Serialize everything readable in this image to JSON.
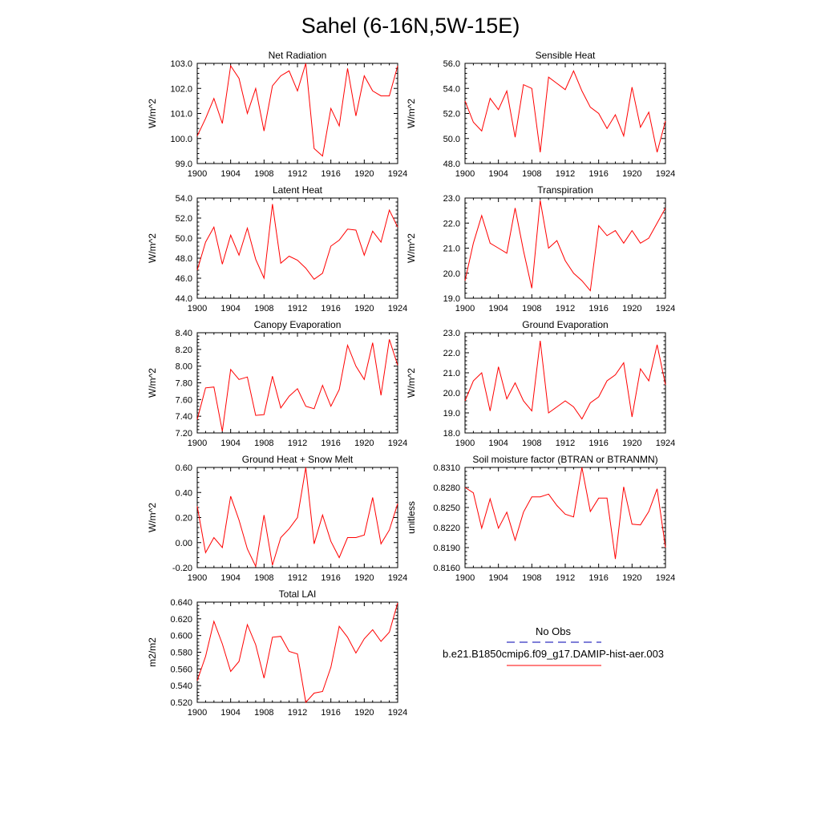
{
  "title": "Sahel (6-16N,5W-15E)",
  "legend": {
    "obs_label": "No Obs",
    "obs_color": "#3030c0",
    "model_label": "b.e21.B1850cmip6.f09_g17.DAMIP-hist-aer.003",
    "model_color": "#ff0000"
  },
  "series_color": "#ff0000",
  "chart_data": [
    {
      "type": "line",
      "title": "Net Radiation",
      "ylabel": "W/m^2",
      "xlim": [
        1900,
        1924
      ],
      "ylim": [
        99.0,
        103.0
      ],
      "xticks": [
        "1900",
        "1904",
        "1908",
        "1912",
        "1916",
        "1920",
        "1924"
      ],
      "yticks": [
        "99.0",
        "100.0",
        "101.0",
        "102.0",
        "103.0"
      ],
      "x": [
        1900,
        1901,
        1902,
        1903,
        1904,
        1905,
        1906,
        1907,
        1908,
        1909,
        1910,
        1911,
        1912,
        1913,
        1914,
        1915,
        1916,
        1917,
        1918,
        1919,
        1920,
        1921,
        1922,
        1923,
        1924
      ],
      "y": [
        100.1,
        100.8,
        101.6,
        100.6,
        102.9,
        102.4,
        101.0,
        102.0,
        100.3,
        102.1,
        102.5,
        102.7,
        101.9,
        103.0,
        99.6,
        99.3,
        101.2,
        100.5,
        102.8,
        100.9,
        102.5,
        101.9,
        101.7,
        101.7,
        102.9
      ]
    },
    {
      "type": "line",
      "title": "Sensible Heat",
      "ylabel": "W/m^2",
      "xlim": [
        1900,
        1924
      ],
      "ylim": [
        48.0,
        56.0
      ],
      "xticks": [
        "1900",
        "1904",
        "1908",
        "1912",
        "1916",
        "1920",
        "1924"
      ],
      "yticks": [
        "48.0",
        "50.0",
        "52.0",
        "54.0",
        "56.0"
      ],
      "x": [
        1900,
        1901,
        1902,
        1903,
        1904,
        1905,
        1906,
        1907,
        1908,
        1909,
        1910,
        1911,
        1912,
        1913,
        1914,
        1915,
        1916,
        1917,
        1918,
        1919,
        1920,
        1921,
        1922,
        1923,
        1924
      ],
      "y": [
        53.0,
        51.3,
        50.6,
        53.2,
        52.3,
        53.8,
        50.1,
        54.3,
        54.0,
        48.9,
        54.9,
        54.4,
        53.9,
        55.4,
        53.8,
        52.5,
        52.0,
        50.8,
        51.9,
        50.2,
        54.1,
        50.9,
        52.1,
        48.9,
        51.4
      ]
    },
    {
      "type": "line",
      "title": "Latent Heat",
      "ylabel": "W/m^2",
      "xlim": [
        1900,
        1924
      ],
      "ylim": [
        44.0,
        54.0
      ],
      "xticks": [
        "1900",
        "1904",
        "1908",
        "1912",
        "1916",
        "1920",
        "1924"
      ],
      "yticks": [
        "44.0",
        "46.0",
        "48.0",
        "50.0",
        "52.0",
        "54.0"
      ],
      "x": [
        1900,
        1901,
        1902,
        1903,
        1904,
        1905,
        1906,
        1907,
        1908,
        1909,
        1910,
        1911,
        1912,
        1913,
        1914,
        1915,
        1916,
        1917,
        1918,
        1919,
        1920,
        1921,
        1922,
        1923,
        1924
      ],
      "y": [
        46.8,
        49.6,
        51.1,
        47.4,
        50.3,
        48.3,
        51.0,
        47.9,
        46.0,
        53.4,
        47.5,
        48.2,
        47.8,
        47.0,
        45.9,
        46.5,
        49.2,
        49.8,
        50.9,
        50.8,
        48.3,
        50.7,
        49.6,
        52.8,
        51.1
      ]
    },
    {
      "type": "line",
      "title": "Transpiration",
      "ylabel": "W/m^2",
      "xlim": [
        1900,
        1924
      ],
      "ylim": [
        19.0,
        23.0
      ],
      "xticks": [
        "1900",
        "1904",
        "1908",
        "1912",
        "1916",
        "1920",
        "1924"
      ],
      "yticks": [
        "19.0",
        "20.0",
        "21.0",
        "22.0",
        "23.0"
      ],
      "x": [
        1900,
        1901,
        1902,
        1903,
        1904,
        1905,
        1906,
        1907,
        1908,
        1909,
        1910,
        1911,
        1912,
        1913,
        1914,
        1915,
        1916,
        1917,
        1918,
        1919,
        1920,
        1921,
        1922,
        1923,
        1924
      ],
      "y": [
        19.7,
        21.2,
        22.3,
        21.2,
        21.0,
        20.8,
        22.6,
        20.9,
        19.4,
        22.9,
        21.0,
        21.3,
        20.5,
        20.0,
        19.7,
        19.3,
        21.9,
        21.5,
        21.7,
        21.2,
        21.7,
        21.2,
        21.4,
        22.0,
        22.6
      ]
    },
    {
      "type": "line",
      "title": "Canopy Evaporation",
      "ylabel": "W/m^2",
      "xlim": [
        1900,
        1924
      ],
      "ylim": [
        7.2,
        8.4
      ],
      "xticks": [
        "1900",
        "1904",
        "1908",
        "1912",
        "1916",
        "1920",
        "1924"
      ],
      "yticks": [
        "7.20",
        "7.40",
        "7.60",
        "7.80",
        "8.00",
        "8.20",
        "8.40"
      ],
      "x": [
        1900,
        1901,
        1902,
        1903,
        1904,
        1905,
        1906,
        1907,
        1908,
        1909,
        1910,
        1911,
        1912,
        1913,
        1914,
        1915,
        1916,
        1917,
        1918,
        1919,
        1920,
        1921,
        1922,
        1923,
        1924
      ],
      "y": [
        7.36,
        7.74,
        7.75,
        7.22,
        7.96,
        7.84,
        7.87,
        7.41,
        7.42,
        7.88,
        7.5,
        7.64,
        7.73,
        7.52,
        7.49,
        7.77,
        7.52,
        7.72,
        8.25,
        8.0,
        7.84,
        8.28,
        7.65,
        8.32,
        8.01
      ]
    },
    {
      "type": "line",
      "title": "Ground Evaporation",
      "ylabel": "W/m^2",
      "xlim": [
        1900,
        1924
      ],
      "ylim": [
        18.0,
        23.0
      ],
      "xticks": [
        "1900",
        "1904",
        "1908",
        "1912",
        "1916",
        "1920",
        "1924"
      ],
      "yticks": [
        "18.0",
        "19.0",
        "20.0",
        "21.0",
        "22.0",
        "23.0"
      ],
      "x": [
        1900,
        1901,
        1902,
        1903,
        1904,
        1905,
        1906,
        1907,
        1908,
        1909,
        1910,
        1911,
        1912,
        1913,
        1914,
        1915,
        1916,
        1917,
        1918,
        1919,
        1920,
        1921,
        1922,
        1923,
        1924
      ],
      "y": [
        19.6,
        20.6,
        21.0,
        19.1,
        21.3,
        19.7,
        20.5,
        19.6,
        19.1,
        22.6,
        19.0,
        19.3,
        19.6,
        19.3,
        18.7,
        19.5,
        19.8,
        20.6,
        20.9,
        21.5,
        18.8,
        21.2,
        20.6,
        22.4,
        20.4
      ]
    },
    {
      "type": "line",
      "title": "Ground Heat + Snow Melt",
      "ylabel": "W/m^2",
      "xlim": [
        1900,
        1924
      ],
      "ylim": [
        -0.2,
        0.6
      ],
      "xticks": [
        "1900",
        "1904",
        "1908",
        "1912",
        "1916",
        "1920",
        "1924"
      ],
      "yticks": [
        "-0.20",
        "0.00",
        "0.20",
        "0.40",
        "0.60"
      ],
      "x": [
        1900,
        1901,
        1902,
        1903,
        1904,
        1905,
        1906,
        1907,
        1908,
        1909,
        1910,
        1911,
        1912,
        1913,
        1914,
        1915,
        1916,
        1917,
        1918,
        1919,
        1920,
        1921,
        1922,
        1923,
        1924
      ],
      "y": [
        0.29,
        -0.08,
        0.04,
        -0.04,
        0.37,
        0.18,
        -0.05,
        -0.19,
        0.22,
        -0.18,
        0.04,
        0.11,
        0.2,
        0.6,
        -0.01,
        0.22,
        0.01,
        -0.12,
        0.04,
        0.04,
        0.06,
        0.36,
        -0.01,
        0.1,
        0.31
      ]
    },
    {
      "type": "line",
      "title": "Soil moisture factor (BTRAN or BTRANMN)",
      "ylabel": "unitless",
      "xlim": [
        1900,
        1924
      ],
      "ylim": [
        0.816,
        0.831
      ],
      "xticks": [
        "1900",
        "1904",
        "1908",
        "1912",
        "1916",
        "1920",
        "1924"
      ],
      "yticks": [
        "0.8160",
        "0.8190",
        "0.8220",
        "0.8250",
        "0.8280",
        "0.8310"
      ],
      "x": [
        1900,
        1901,
        1902,
        1903,
        1904,
        1905,
        1906,
        1907,
        1908,
        1909,
        1910,
        1911,
        1912,
        1913,
        1914,
        1915,
        1916,
        1917,
        1918,
        1919,
        1920,
        1921,
        1922,
        1923,
        1924
      ],
      "y": [
        0.828,
        0.8272,
        0.8219,
        0.8263,
        0.8219,
        0.8243,
        0.8201,
        0.8243,
        0.8266,
        0.8266,
        0.827,
        0.8253,
        0.824,
        0.8236,
        0.831,
        0.8244,
        0.8264,
        0.8264,
        0.8173,
        0.8281,
        0.8225,
        0.8224,
        0.8244,
        0.8278,
        0.819
      ]
    },
    {
      "type": "line",
      "title": "Total LAI",
      "ylabel": "m2/m2",
      "xlim": [
        1900,
        1924
      ],
      "ylim": [
        0.52,
        0.64
      ],
      "xticks": [
        "1900",
        "1904",
        "1908",
        "1912",
        "1916",
        "1920",
        "1924"
      ],
      "yticks": [
        "0.520",
        "0.540",
        "0.560",
        "0.580",
        "0.600",
        "0.620",
        "0.640"
      ],
      "x": [
        1900,
        1901,
        1902,
        1903,
        1904,
        1905,
        1906,
        1907,
        1908,
        1909,
        1910,
        1911,
        1912,
        1913,
        1914,
        1915,
        1916,
        1917,
        1918,
        1919,
        1920,
        1921,
        1922,
        1923,
        1924
      ],
      "y": [
        0.546,
        0.575,
        0.617,
        0.59,
        0.557,
        0.569,
        0.613,
        0.589,
        0.549,
        0.598,
        0.599,
        0.581,
        0.578,
        0.52,
        0.531,
        0.533,
        0.562,
        0.611,
        0.598,
        0.579,
        0.596,
        0.607,
        0.593,
        0.604,
        0.639
      ]
    }
  ]
}
